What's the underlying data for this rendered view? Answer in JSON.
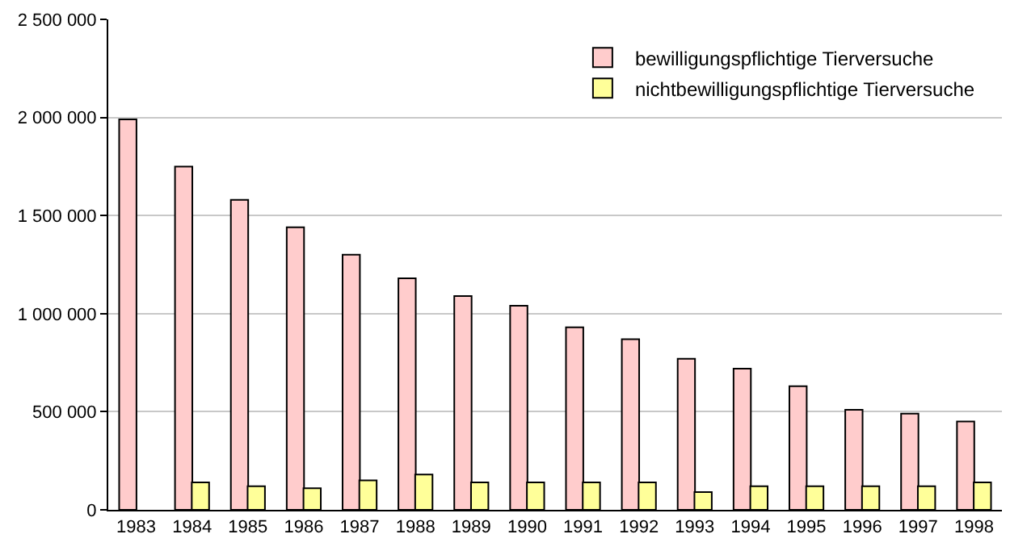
{
  "chart_data": {
    "type": "bar",
    "categories": [
      "1983",
      "1984",
      "1985",
      "1986",
      "1987",
      "1988",
      "1989",
      "1990",
      "1991",
      "1992",
      "1993",
      "1994",
      "1995",
      "1996",
      "1997",
      "1998"
    ],
    "series": [
      {
        "name": "bewilligungspflichtige Tierversuche",
        "color": "#ffcccc",
        "values": [
          1990000,
          1750000,
          1580000,
          1440000,
          1300000,
          1180000,
          1090000,
          1040000,
          930000,
          870000,
          770000,
          720000,
          630000,
          510000,
          490000,
          450000
        ]
      },
      {
        "name": "nichtbewilligungspflichtige Tierversuche",
        "color": "#ffff99",
        "values": [
          null,
          140000,
          120000,
          110000,
          150000,
          180000,
          140000,
          140000,
          140000,
          140000,
          90000,
          120000,
          120000,
          120000,
          120000,
          140000
        ]
      }
    ],
    "ylim": [
      0,
      2500000
    ],
    "yticks": [
      {
        "value": 0,
        "label": "0"
      },
      {
        "value": 500000,
        "label": "500 000"
      },
      {
        "value": 1000000,
        "label": "1 000 000"
      },
      {
        "value": 1500000,
        "label": "1 500 000"
      },
      {
        "value": 2000000,
        "label": "2 000 000"
      },
      {
        "value": 2500000,
        "label": "2 500 000"
      }
    ],
    "grid": "y",
    "legend": "top right"
  }
}
